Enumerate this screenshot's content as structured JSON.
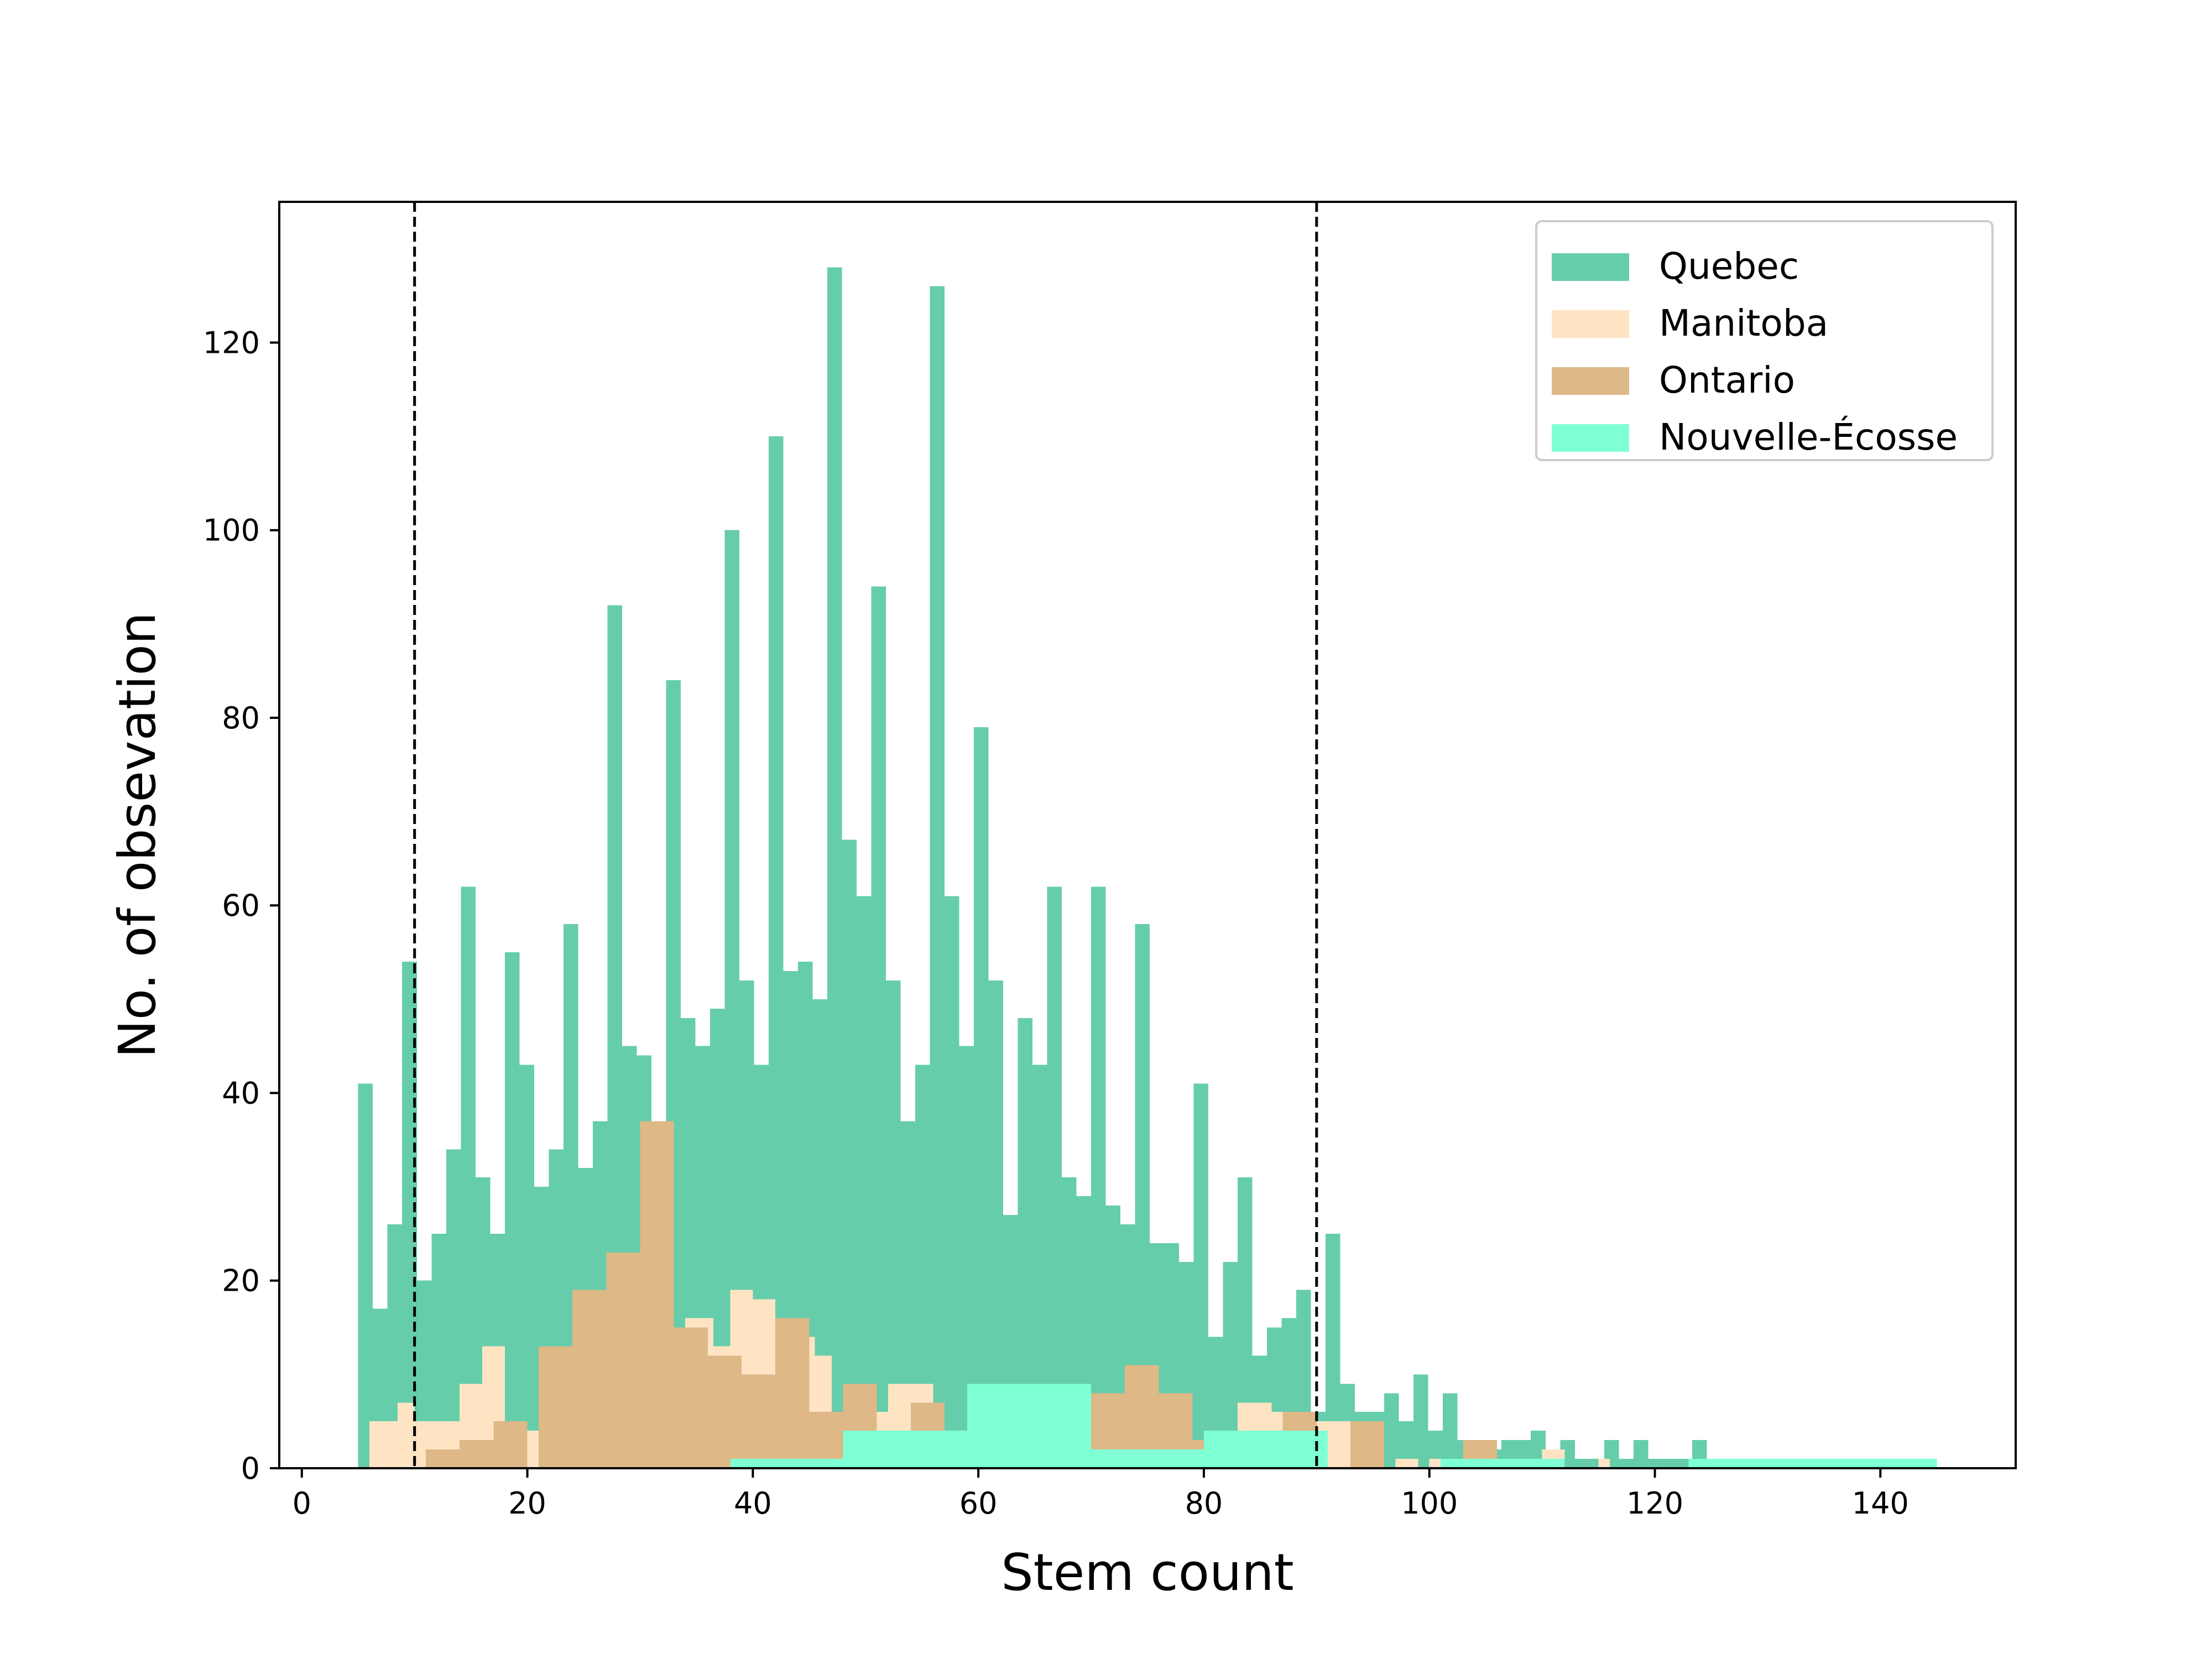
{
  "chart_data": {
    "type": "histogram",
    "xlabel": "Stem count",
    "ylabel": "No. of obsevation",
    "xlim": [
      -2,
      152
    ],
    "ylim": [
      0,
      135
    ],
    "x_ticks": [
      0,
      20,
      40,
      60,
      80,
      100,
      120,
      140
    ],
    "y_ticks": [
      0,
      20,
      40,
      60,
      80,
      100,
      120
    ],
    "grid": false,
    "legend_position": "top-right",
    "reference_lines": [
      {
        "x": 10,
        "style": "dashed",
        "color": "#000000"
      },
      {
        "x": 90,
        "style": "dashed",
        "color": "#000000"
      }
    ],
    "series": [
      {
        "name": "Quebec",
        "color": "#66cdaa",
        "bins": [
          [
            5,
            6.3,
            41
          ],
          [
            6.3,
            7.6,
            17
          ],
          [
            7.6,
            8.9,
            26
          ],
          [
            8.9,
            10.2,
            54
          ],
          [
            10.2,
            11.5,
            20
          ],
          [
            11.5,
            12.8,
            25
          ],
          [
            12.8,
            14.1,
            34
          ],
          [
            14.1,
            15.4,
            62
          ],
          [
            15.4,
            16.7,
            31
          ],
          [
            16.7,
            18.0,
            25
          ],
          [
            18.0,
            19.3,
            55
          ],
          [
            19.3,
            20.6,
            43
          ],
          [
            20.6,
            21.9,
            30
          ],
          [
            21.9,
            23.2,
            34
          ],
          [
            23.2,
            24.5,
            58
          ],
          [
            24.5,
            25.8,
            32
          ],
          [
            25.8,
            27.1,
            37
          ],
          [
            27.1,
            28.4,
            92
          ],
          [
            28.4,
            29.7,
            45
          ],
          [
            29.7,
            31.0,
            44
          ],
          [
            31.0,
            32.3,
            36
          ],
          [
            32.3,
            33.6,
            84
          ],
          [
            33.6,
            34.9,
            48
          ],
          [
            34.9,
            36.2,
            45
          ],
          [
            36.2,
            37.5,
            49
          ],
          [
            37.5,
            38.8,
            100
          ],
          [
            38.8,
            40.1,
            52
          ],
          [
            40.1,
            41.4,
            43
          ],
          [
            41.4,
            42.7,
            110
          ],
          [
            42.7,
            44.0,
            53
          ],
          [
            44.0,
            45.3,
            54
          ],
          [
            45.3,
            46.6,
            50
          ],
          [
            46.6,
            47.9,
            128
          ],
          [
            47.9,
            49.2,
            67
          ],
          [
            49.2,
            50.5,
            61
          ],
          [
            50.5,
            51.8,
            94
          ],
          [
            51.8,
            53.1,
            52
          ],
          [
            53.1,
            54.4,
            37
          ],
          [
            54.4,
            55.7,
            43
          ],
          [
            55.7,
            57.0,
            126
          ],
          [
            57.0,
            58.3,
            61
          ],
          [
            58.3,
            59.6,
            45
          ],
          [
            59.6,
            60.9,
            79
          ],
          [
            60.9,
            62.2,
            52
          ],
          [
            62.2,
            63.5,
            27
          ],
          [
            63.5,
            64.8,
            48
          ],
          [
            64.8,
            66.1,
            43
          ],
          [
            66.1,
            67.4,
            62
          ],
          [
            67.4,
            68.7,
            31
          ],
          [
            68.7,
            70.0,
            29
          ],
          [
            70.0,
            71.3,
            62
          ],
          [
            71.3,
            72.6,
            28
          ],
          [
            72.6,
            73.9,
            26
          ],
          [
            73.9,
            75.2,
            58
          ],
          [
            75.2,
            76.5,
            24
          ],
          [
            76.5,
            77.8,
            24
          ],
          [
            77.8,
            79.1,
            22
          ],
          [
            79.1,
            80.4,
            41
          ],
          [
            80.4,
            81.7,
            14
          ],
          [
            81.7,
            83.0,
            22
          ],
          [
            83.0,
            84.3,
            31
          ],
          [
            84.3,
            85.6,
            12
          ],
          [
            85.6,
            86.9,
            15
          ],
          [
            86.9,
            88.2,
            16
          ],
          [
            88.2,
            89.5,
            19
          ],
          [
            89.5,
            90.8,
            6
          ],
          [
            90.8,
            92.1,
            25
          ],
          [
            92.1,
            93.4,
            9
          ],
          [
            93.4,
            94.7,
            6
          ],
          [
            94.7,
            96.0,
            6
          ],
          [
            96.0,
            97.3,
            8
          ],
          [
            97.3,
            98.6,
            5
          ],
          [
            98.6,
            99.9,
            10
          ],
          [
            99.9,
            101.2,
            4
          ],
          [
            101.2,
            102.5,
            8
          ],
          [
            102.5,
            103.8,
            3
          ],
          [
            103.8,
            105.1,
            3
          ],
          [
            105.1,
            106.4,
            2
          ],
          [
            106.4,
            107.7,
            3
          ],
          [
            107.7,
            109.0,
            3
          ],
          [
            109.0,
            110.3,
            4
          ],
          [
            110.3,
            111.6,
            2
          ],
          [
            111.6,
            112.9,
            3
          ],
          [
            112.9,
            114.2,
            1
          ],
          [
            114.2,
            115.5,
            1
          ],
          [
            115.5,
            116.8,
            3
          ],
          [
            116.8,
            118.1,
            1
          ],
          [
            118.1,
            119.4,
            3
          ],
          [
            119.4,
            120.7,
            1
          ],
          [
            120.7,
            122.0,
            1
          ],
          [
            122.0,
            123.3,
            1
          ],
          [
            123.3,
            124.6,
            3
          ],
          [
            124.6,
            125.9,
            1
          ],
          [
            125.9,
            133.0,
            1
          ]
        ]
      },
      {
        "name": "Manitoba",
        "color": "#ffe4c4",
        "bins": [
          [
            6.0,
            8.5,
            5
          ],
          [
            8.5,
            10.0,
            7
          ],
          [
            10.0,
            14.0,
            5
          ],
          [
            14.0,
            16.0,
            9
          ],
          [
            16.0,
            18.0,
            13
          ],
          [
            18.0,
            19.5,
            4
          ],
          [
            19.5,
            21.0,
            4
          ],
          [
            34.0,
            36.5,
            16
          ],
          [
            36.5,
            38.0,
            13
          ],
          [
            38.0,
            40.0,
            19
          ],
          [
            40.0,
            42.0,
            18
          ],
          [
            42.0,
            44.0,
            11
          ],
          [
            44.0,
            45.5,
            14
          ],
          [
            45.5,
            47.0,
            12
          ],
          [
            47.0,
            49.0,
            5
          ],
          [
            49.0,
            52.0,
            6
          ],
          [
            52.0,
            54.0,
            9
          ],
          [
            54.0,
            56.0,
            9
          ],
          [
            56.0,
            57.0,
            6
          ],
          [
            83.0,
            86.0,
            7
          ],
          [
            86.0,
            88.0,
            6
          ],
          [
            90.0,
            93.5,
            5
          ],
          [
            97.0,
            99.0,
            1
          ],
          [
            100.0,
            102.0,
            1
          ],
          [
            105.0,
            106.0,
            1
          ],
          [
            110.0,
            112.0,
            2
          ],
          [
            115.0,
            116.0,
            1
          ]
        ]
      },
      {
        "name": "Ontario",
        "color": "#deb887",
        "bins": [
          [
            11.0,
            14.0,
            2
          ],
          [
            14.0,
            17.0,
            3
          ],
          [
            17.0,
            20.0,
            5
          ],
          [
            20.0,
            21.0,
            0
          ],
          [
            21.0,
            24.0,
            13
          ],
          [
            24.0,
            27.0,
            19
          ],
          [
            27.0,
            30.0,
            23
          ],
          [
            30.0,
            33.0,
            37
          ],
          [
            33.0,
            36.0,
            15
          ],
          [
            36.0,
            39.0,
            12
          ],
          [
            39.0,
            42.0,
            10
          ],
          [
            42.0,
            45.0,
            16
          ],
          [
            45.0,
            48.0,
            6
          ],
          [
            48.0,
            51.0,
            9
          ],
          [
            51.0,
            54.0,
            4
          ],
          [
            54.0,
            57.0,
            7
          ],
          [
            57.0,
            60.0,
            4
          ],
          [
            70.0,
            73.0,
            8
          ],
          [
            73.0,
            76.0,
            11
          ],
          [
            76.0,
            79.0,
            8
          ],
          [
            79.0,
            82.0,
            3
          ],
          [
            87.0,
            90.0,
            6
          ],
          [
            93.0,
            96.0,
            5
          ],
          [
            103.0,
            106.0,
            3
          ],
          [
            106.0,
            109.0,
            1
          ]
        ]
      },
      {
        "name": "Nouvelle-Écosse",
        "color": "#7fffd4",
        "bins": [
          [
            38.0,
            48.0,
            1
          ],
          [
            48.0,
            59.0,
            4
          ],
          [
            59.0,
            70.0,
            9
          ],
          [
            70.0,
            80.0,
            2
          ],
          [
            80.0,
            91.0,
            4
          ],
          [
            101.0,
            112.0,
            1
          ],
          [
            112.0,
            123.0,
            0
          ],
          [
            123.0,
            133.0,
            1
          ],
          [
            133.0,
            145.0,
            1
          ]
        ]
      }
    ]
  }
}
